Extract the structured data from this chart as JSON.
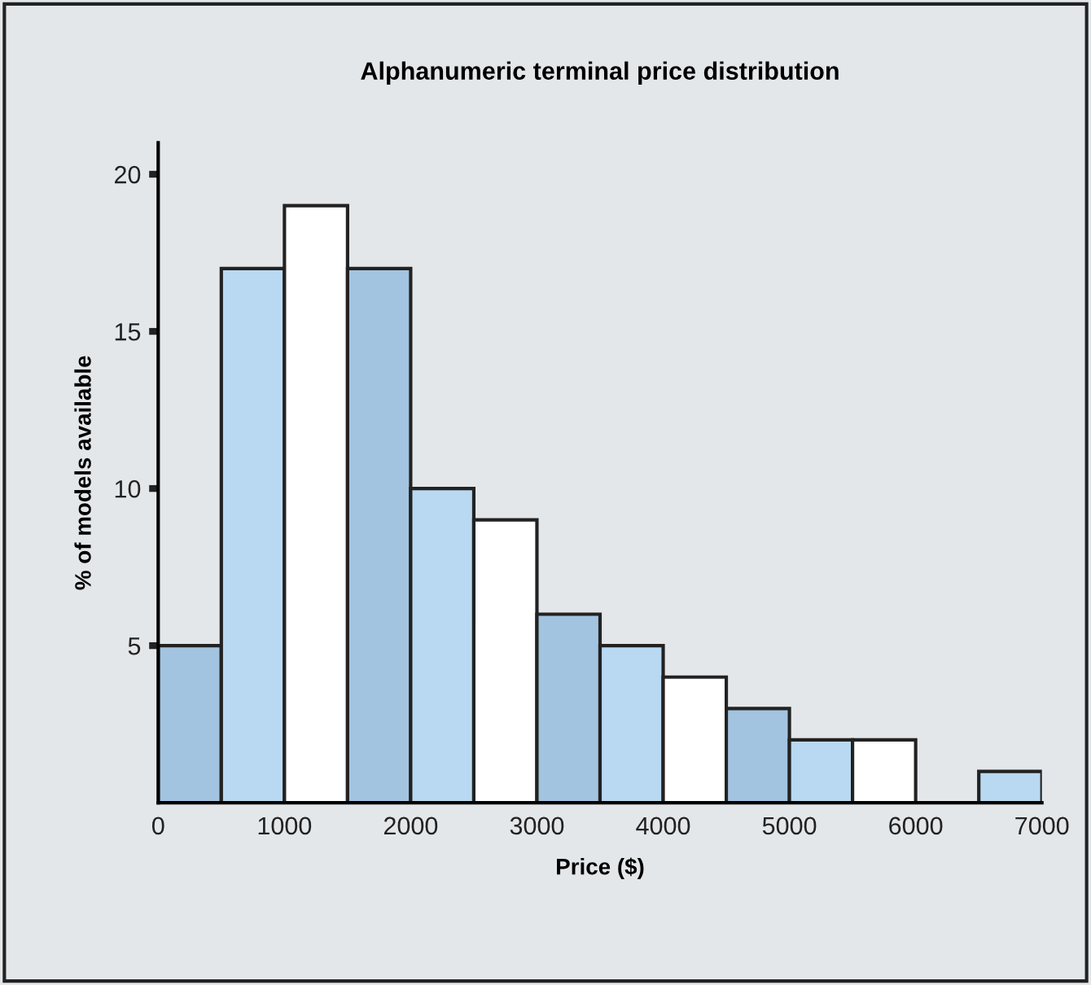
{
  "chart_data": {
    "type": "histogram",
    "title": "Alphanumeric terminal price distribution",
    "xlabel": "Price ($)",
    "ylabel": "% of models available",
    "bins": [
      0,
      500,
      1000,
      1500,
      2000,
      2500,
      3000,
      3500,
      4000,
      4500,
      5000,
      5500,
      6000,
      6500,
      7000
    ],
    "values": [
      5,
      17,
      19,
      17,
      10,
      9,
      6,
      5,
      4,
      3,
      2,
      2,
      0,
      1
    ],
    "colors": [
      "#a3c4e0",
      "#b9d9f2",
      "#ffffff",
      "#a3c4e0",
      "#b9d9f2",
      "#ffffff",
      "#a3c4e0",
      "#b9d9f2",
      "#ffffff",
      "#a3c4e0",
      "#b9d9f2",
      "#ffffff",
      null,
      "#b9d9f2"
    ],
    "xlim": [
      0,
      7000
    ],
    "xticks": [
      0,
      1000,
      2000,
      3000,
      4000,
      5000,
      6000,
      7000
    ],
    "ylim": [
      0,
      21
    ],
    "yticks": [
      5,
      10,
      15,
      20
    ],
    "grid": false
  }
}
